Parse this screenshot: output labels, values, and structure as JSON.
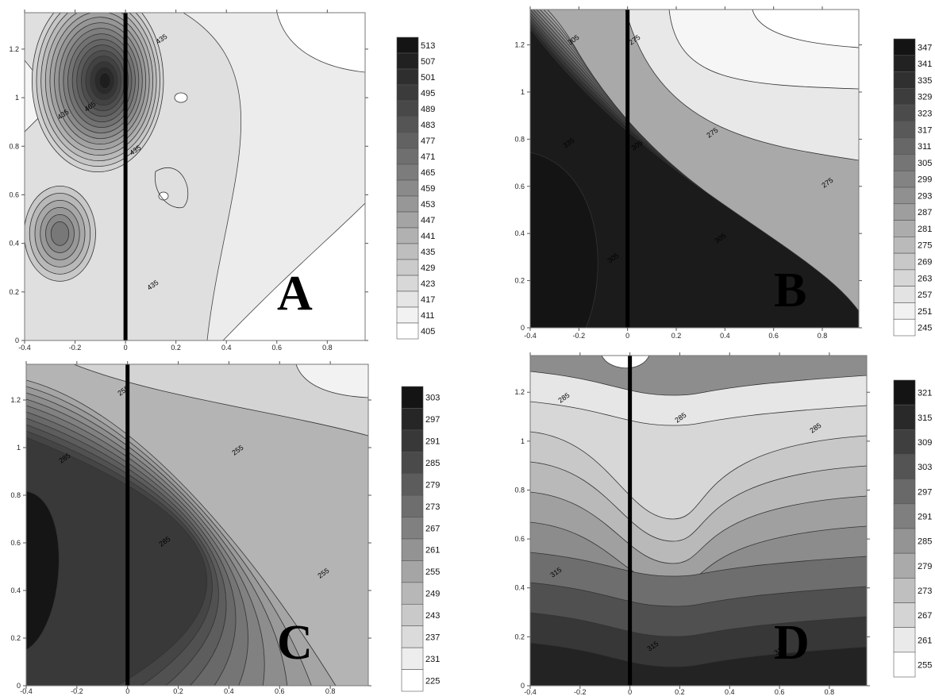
{
  "chart_data": [
    {
      "type": "contour",
      "panel_label": "A",
      "xlim": [
        -0.4,
        0.95
      ],
      "ylim": [
        0,
        1.35
      ],
      "x_ticks": [
        "-0.4",
        "-0.2",
        "0",
        "0.2",
        "0.4",
        "0.6",
        "0.8"
      ],
      "y_ticks": [
        "0",
        "0.2",
        "0.4",
        "0.6",
        "0.8",
        "1",
        "1.2"
      ],
      "legend_levels": [
        "513",
        "507",
        "501",
        "495",
        "489",
        "483",
        "477",
        "471",
        "465",
        "459",
        "453",
        "447",
        "441",
        "435",
        "429",
        "423",
        "417",
        "411",
        "405"
      ],
      "contour_labels": [
        "435",
        "435",
        "465",
        "435",
        "435"
      ],
      "peaks": [
        {
          "x": -0.11,
          "y": 1.07,
          "value": 513
        },
        {
          "x": -0.26,
          "y": 0.44,
          "value": 465
        }
      ],
      "vertical_line_x": 0,
      "background": "#dfdfdf",
      "low_region": "#ffffff",
      "peak_color": "#111111"
    },
    {
      "type": "contour",
      "panel_label": "B",
      "xlim": [
        -0.4,
        0.95
      ],
      "ylim": [
        0,
        1.35
      ],
      "x_ticks": [
        "-0.4",
        "-0.2",
        "0",
        "0.2",
        "0.4",
        "0.6",
        "0.8"
      ],
      "y_ticks": [
        "0",
        "0.2",
        "0.4",
        "0.6",
        "0.8",
        "1",
        "1.2"
      ],
      "legend_levels": [
        "347",
        "341",
        "335",
        "329",
        "323",
        "317",
        "311",
        "305",
        "299",
        "293",
        "287",
        "281",
        "275",
        "269",
        "263",
        "257",
        "251",
        "245"
      ],
      "contour_labels": [
        "305",
        "275",
        "335",
        "305",
        "275",
        "275",
        "305",
        "305"
      ],
      "vertical_line_x": 0,
      "background": "#a9a9a9",
      "low_region": "#f4f4f4",
      "peak_color": "#1a1a1a"
    },
    {
      "type": "contour",
      "panel_label": "C",
      "xlim": [
        -0.4,
        0.95
      ],
      "ylim": [
        0,
        1.35
      ],
      "x_ticks": [
        "-0.4",
        "-0.2",
        "0",
        "0.2",
        "0.4",
        "0.6",
        "0.8"
      ],
      "y_ticks": [
        "0",
        "0.2",
        "0.4",
        "0.6",
        "0.8",
        "1",
        "1.2"
      ],
      "legend_levels": [
        "303",
        "297",
        "291",
        "285",
        "279",
        "273",
        "267",
        "261",
        "255",
        "249",
        "243",
        "237",
        "231",
        "225"
      ],
      "contour_labels": [
        "255",
        "285",
        "255",
        "285",
        "255"
      ],
      "vertical_line_x": 0,
      "background": "#b4b4b4",
      "low_region": "#eeeeee",
      "peak_color": "#1a1a1a"
    },
    {
      "type": "contour",
      "panel_label": "D",
      "xlim": [
        -0.4,
        0.95
      ],
      "ylim": [
        0,
        1.35
      ],
      "x_ticks": [
        "-0.4",
        "-0.2",
        "0",
        "0.2",
        "0.4",
        "0.6",
        "0.8"
      ],
      "y_ticks": [
        "0",
        "0.2",
        "0.4",
        "0.6",
        "0.8",
        "1",
        "1.2"
      ],
      "legend_levels": [
        "321",
        "315",
        "309",
        "303",
        "297",
        "291",
        "285",
        "279",
        "273",
        "267",
        "261",
        "255"
      ],
      "contour_labels": [
        "285",
        "285",
        "285",
        "315",
        "315",
        "315"
      ],
      "vertical_line_x": 0,
      "background": "#8d8d8d",
      "low_region": "#f2f2f2",
      "peak_color": "#222222"
    }
  ]
}
